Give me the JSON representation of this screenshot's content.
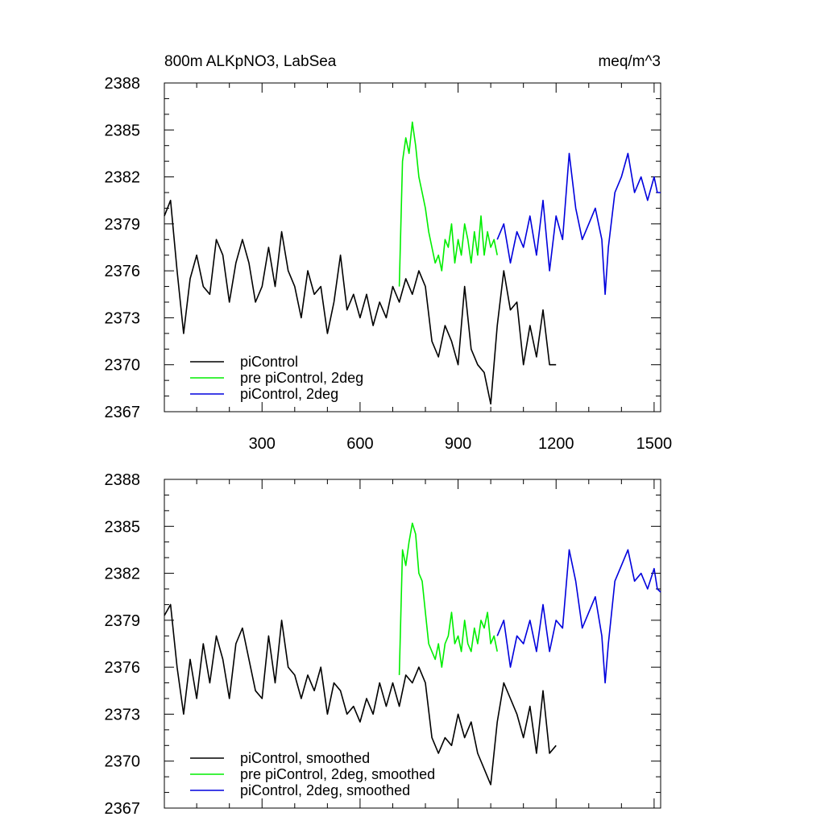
{
  "title_left": "800m ALKpNO3, LabSea",
  "title_right": "meq/m^3",
  "colors": {
    "black": "#000000",
    "green": "#00ee00",
    "blue": "#0000dd"
  },
  "chart_data": [
    {
      "type": "line",
      "panel": "top",
      "title": "800m ALKpNO3, LabSea",
      "units": "meq/m^3",
      "xlim": [
        1,
        1520
      ],
      "ylim": [
        2367,
        2388
      ],
      "xticks": [
        300,
        600,
        900,
        1200,
        1500
      ],
      "yticks": [
        2367,
        2370,
        2373,
        2376,
        2379,
        2382,
        2385,
        2388
      ],
      "legend_position": "bottom-left",
      "series": [
        {
          "name": "piControl",
          "color": "#000000",
          "x": [
            1,
            20,
            40,
            60,
            80,
            100,
            120,
            140,
            160,
            180,
            200,
            220,
            240,
            260,
            280,
            300,
            320,
            340,
            360,
            380,
            400,
            420,
            440,
            460,
            480,
            500,
            520,
            540,
            560,
            580,
            600,
            620,
            640,
            660,
            680,
            700,
            720,
            740,
            760,
            780,
            800,
            820,
            840,
            860,
            880,
            900,
            920,
            940,
            960,
            980,
            1000,
            1020,
            1040,
            1060,
            1080,
            1100,
            1120,
            1140,
            1160,
            1180,
            1200
          ],
          "y": [
            2379.5,
            2380.5,
            2376,
            2372,
            2375.5,
            2377,
            2375,
            2374.5,
            2378,
            2377,
            2374,
            2376.5,
            2378,
            2376.5,
            2374,
            2375,
            2377.5,
            2375,
            2378.5,
            2376,
            2375,
            2373,
            2376,
            2374.5,
            2375,
            2372,
            2374,
            2377,
            2373.5,
            2374.5,
            2373,
            2374.5,
            2372.5,
            2374,
            2373,
            2375,
            2374,
            2375.5,
            2374.5,
            2376,
            2375,
            2371.5,
            2370.5,
            2372.5,
            2371.5,
            2370,
            2375,
            2371,
            2370,
            2369.5,
            2367.5,
            2372.5,
            2376,
            2373.5,
            2374,
            2370,
            2372.5,
            2370.5,
            2373.5,
            2370,
            2370
          ]
        },
        {
          "name": "pre piControl, 2deg",
          "color": "#00ee00",
          "x": [
            720,
            730,
            740,
            750,
            760,
            770,
            780,
            790,
            800,
            810,
            820,
            830,
            840,
            850,
            860,
            870,
            880,
            890,
            900,
            910,
            920,
            930,
            940,
            950,
            960,
            970,
            980,
            990,
            1000,
            1010,
            1020
          ],
          "y": [
            2375,
            2383,
            2384.5,
            2383.5,
            2385.5,
            2384,
            2382,
            2381,
            2380,
            2378.5,
            2377.5,
            2376.5,
            2377,
            2376,
            2378,
            2377.5,
            2379,
            2376.5,
            2378,
            2377,
            2379,
            2378,
            2376.5,
            2378.5,
            2377,
            2379.5,
            2377,
            2378.5,
            2377.5,
            2378,
            2377
          ]
        },
        {
          "name": "piControl, 2deg",
          "color": "#0000dd",
          "x": [
            1020,
            1040,
            1060,
            1080,
            1100,
            1120,
            1140,
            1160,
            1180,
            1200,
            1220,
            1240,
            1260,
            1280,
            1300,
            1320,
            1340,
            1350,
            1360,
            1380,
            1400,
            1420,
            1440,
            1460,
            1480,
            1500,
            1510,
            1520
          ],
          "y": [
            2378,
            2379,
            2376.5,
            2378.5,
            2377.5,
            2379.5,
            2377,
            2380.5,
            2376,
            2379.5,
            2378,
            2383.5,
            2380,
            2378,
            2379,
            2380,
            2378,
            2374.5,
            2377.5,
            2381,
            2382,
            2383.5,
            2381,
            2382,
            2380.5,
            2382,
            2381,
            2381
          ]
        }
      ]
    },
    {
      "type": "line",
      "panel": "bottom",
      "xlim": [
        1,
        1520
      ],
      "ylim": [
        2367,
        2388
      ],
      "yticks": [
        2367,
        2370,
        2373,
        2376,
        2379,
        2382,
        2385,
        2388
      ],
      "legend_position": "bottom-left",
      "series": [
        {
          "name": "piControl, smoothed",
          "color": "#000000",
          "x": [
            1,
            20,
            40,
            60,
            80,
            100,
            120,
            140,
            160,
            180,
            200,
            220,
            240,
            260,
            280,
            300,
            320,
            340,
            360,
            380,
            400,
            420,
            440,
            460,
            480,
            500,
            520,
            540,
            560,
            580,
            600,
            620,
            640,
            660,
            680,
            700,
            720,
            740,
            760,
            780,
            800,
            820,
            840,
            860,
            880,
            900,
            920,
            940,
            960,
            980,
            1000,
            1020,
            1040,
            1060,
            1080,
            1100,
            1120,
            1140,
            1160,
            1180,
            1200
          ],
          "y": [
            2379.3,
            2380,
            2376,
            2373,
            2376.5,
            2374,
            2377.5,
            2375,
            2378,
            2376.5,
            2374,
            2377.5,
            2378.5,
            2376.5,
            2374.5,
            2374,
            2378,
            2375,
            2379,
            2376,
            2375.5,
            2374,
            2375.5,
            2374.5,
            2376,
            2373,
            2375,
            2374.5,
            2373,
            2373.5,
            2372.5,
            2374,
            2373,
            2375,
            2373.5,
            2375,
            2373.5,
            2375.5,
            2375,
            2376,
            2375,
            2371.5,
            2370.5,
            2371.5,
            2371,
            2373,
            2371.5,
            2372.5,
            2370.5,
            2369.5,
            2368.5,
            2372.5,
            2375,
            2374,
            2373,
            2371.5,
            2373.5,
            2370.5,
            2374.5,
            2370.5,
            2371
          ]
        },
        {
          "name": "pre piControl, 2deg, smoothed",
          "color": "#00ee00",
          "x": [
            720,
            730,
            740,
            750,
            760,
            770,
            780,
            790,
            800,
            810,
            820,
            830,
            840,
            850,
            860,
            870,
            880,
            890,
            900,
            910,
            920,
            930,
            940,
            950,
            960,
            970,
            980,
            990,
            1000,
            1010,
            1020
          ],
          "y": [
            2375.5,
            2383.5,
            2382.5,
            2384,
            2385.2,
            2384.5,
            2382,
            2381.5,
            2379.5,
            2377.5,
            2377,
            2376.5,
            2377.5,
            2376,
            2377.5,
            2378,
            2379.5,
            2377.5,
            2378,
            2377,
            2379,
            2377.5,
            2377,
            2378.5,
            2377.5,
            2379,
            2378.5,
            2379.5,
            2377.5,
            2378,
            2377
          ]
        },
        {
          "name": "piControl, 2deg, smoothed",
          "color": "#0000dd",
          "x": [
            1020,
            1040,
            1060,
            1080,
            1100,
            1120,
            1140,
            1160,
            1180,
            1200,
            1220,
            1240,
            1260,
            1280,
            1300,
            1320,
            1340,
            1350,
            1360,
            1380,
            1400,
            1420,
            1440,
            1460,
            1480,
            1500,
            1510,
            1520
          ],
          "y": [
            2378,
            2379,
            2376,
            2378,
            2377.5,
            2379,
            2377,
            2380,
            2377,
            2379,
            2378.5,
            2383.5,
            2381.5,
            2378.5,
            2379.5,
            2380.5,
            2378,
            2375,
            2377.5,
            2381.5,
            2382.5,
            2383.5,
            2381.5,
            2382,
            2381,
            2382.3,
            2381,
            2380.8
          ]
        }
      ]
    }
  ]
}
